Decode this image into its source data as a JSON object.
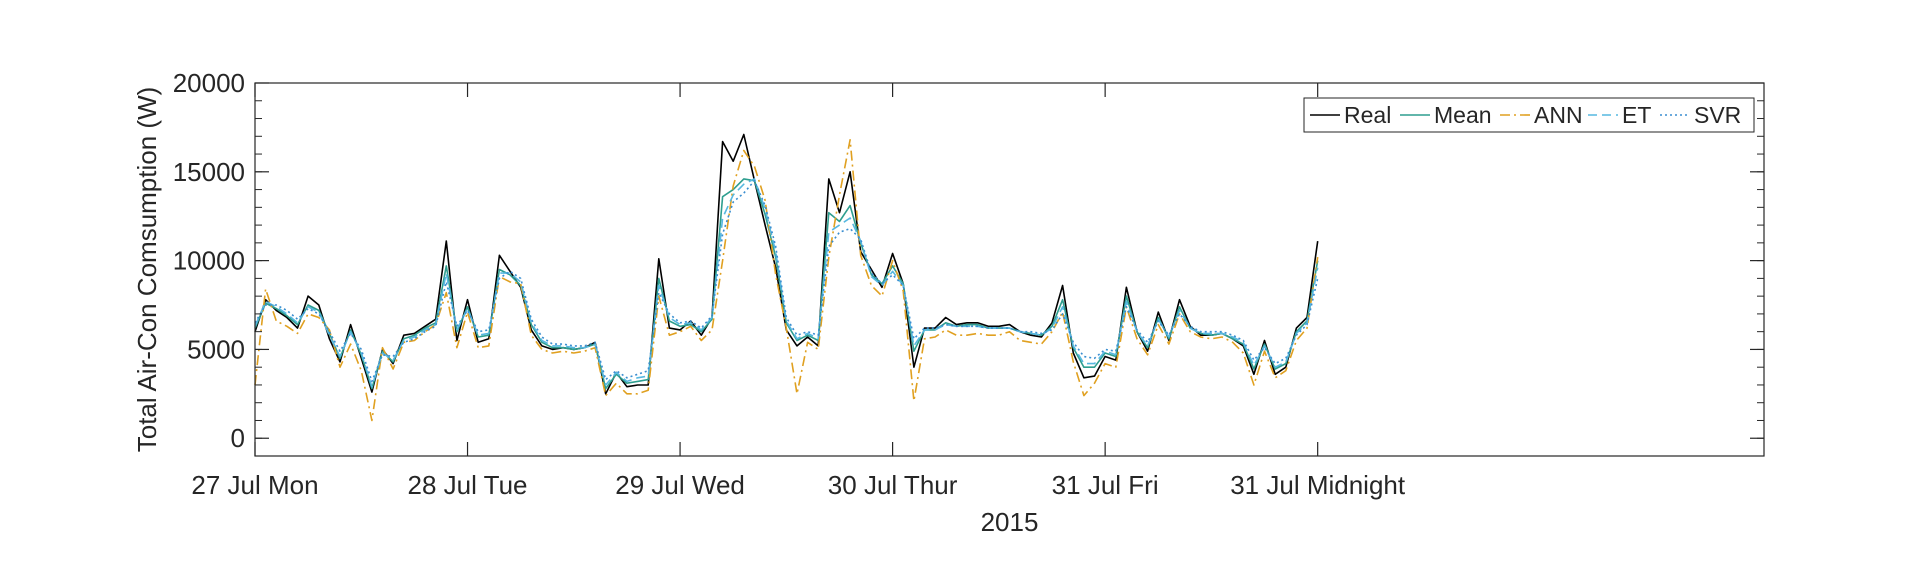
{
  "chart_data": {
    "type": "line",
    "title": "",
    "xlabel": "2015",
    "ylabel": "Total Air-Con Comsumption (W)",
    "ylim": [
      -1000,
      20000
    ],
    "yticks": [
      0,
      5000,
      10000,
      15000,
      20000
    ],
    "yticklabels": [
      "0",
      "5000",
      "10000",
      "15000",
      "20000"
    ],
    "xlim": [
      0,
      7.1
    ],
    "xticks": [
      0,
      1,
      2,
      3,
      4,
      5
    ],
    "xticklabels": [
      "27 Jul Mon",
      "28 Jul Tue",
      "29 Jul Wed",
      "30 Jul Thur",
      "31 Jul Fri",
      "31 Jul Midnight"
    ],
    "grid": false,
    "legend": {
      "position": "top-right",
      "orientation": "horizontal"
    },
    "x": [
      0,
      0.05,
      0.1,
      0.15,
      0.2,
      0.25,
      0.3,
      0.35,
      0.4,
      0.45,
      0.5,
      0.55,
      0.6,
      0.65,
      0.7,
      0.75,
      0.8,
      0.85,
      0.9,
      0.95,
      1,
      1.05,
      1.1,
      1.15,
      1.2,
      1.25,
      1.3,
      1.35,
      1.4,
      1.45,
      1.5,
      1.55,
      1.6,
      1.65,
      1.7,
      1.75,
      1.8,
      1.85,
      1.9,
      1.95,
      2,
      2.05,
      2.1,
      2.15,
      2.2,
      2.25,
      2.3,
      2.35,
      2.4,
      2.45,
      2.5,
      2.55,
      2.6,
      2.65,
      2.7,
      2.75,
      2.8,
      2.85,
      2.9,
      2.95,
      3,
      3.05,
      3.1,
      3.15,
      3.2,
      3.25,
      3.3,
      3.35,
      3.4,
      3.45,
      3.5,
      3.55,
      3.6,
      3.65,
      3.7,
      3.75,
      3.8,
      3.85,
      3.9,
      3.95,
      4,
      4.05,
      4.1,
      4.15,
      4.2,
      4.25,
      4.3,
      4.35,
      4.4,
      4.45,
      4.5,
      4.55,
      4.6,
      4.65,
      4.7,
      4.75,
      4.8,
      4.85,
      4.9,
      4.95,
      5
    ],
    "series": [
      {
        "name": "Real",
        "color": "#000000",
        "dash": "solid",
        "values": [
          6000,
          7800,
          7200,
          6800,
          6200,
          8000,
          7500,
          5600,
          4300,
          6400,
          4500,
          2600,
          5000,
          4200,
          5800,
          5900,
          6300,
          6700,
          11100,
          5500,
          7800,
          5400,
          5600,
          10300,
          9400,
          8500,
          6100,
          5200,
          5000,
          5100,
          5000,
          5100,
          5400,
          2500,
          3700,
          2900,
          3000,
          3000,
          10100,
          6200,
          6100,
          6600,
          5800,
          6800,
          16700,
          15600,
          17100,
          14500,
          12000,
          9600,
          6100,
          5200,
          5700,
          5200,
          14600,
          12700,
          15000,
          10500,
          9500,
          8500,
          10400,
          8700,
          4000,
          6200,
          6200,
          6800,
          6400,
          6500,
          6500,
          6300,
          6300,
          6400,
          6000,
          5800,
          5700,
          6500,
          8600,
          4800,
          3400,
          3500,
          4600,
          4400,
          8500,
          6000,
          4900,
          7100,
          5500,
          7800,
          6300,
          5800,
          5800,
          5900,
          5600,
          5200,
          3600,
          5500,
          3600,
          4000,
          6200,
          6800,
          11100
        ]
      },
      {
        "name": "Mean",
        "color": "#2e9e8f",
        "dash": "solid",
        "values": [
          6200,
          7600,
          7300,
          6900,
          6400,
          7500,
          7200,
          5900,
          4500,
          6100,
          4700,
          2800,
          4900,
          4300,
          5600,
          5800,
          6200,
          6500,
          9700,
          6000,
          7400,
          5700,
          5800,
          9500,
          9200,
          8600,
          6400,
          5400,
          5100,
          5100,
          5000,
          5100,
          5300,
          2800,
          3600,
          3100,
          3200,
          3300,
          9000,
          6600,
          6300,
          6400,
          6000,
          6700,
          13600,
          14000,
          14600,
          14500,
          12600,
          10200,
          6500,
          5500,
          5800,
          5500,
          12700,
          12200,
          13100,
          11000,
          9200,
          8700,
          9700,
          8700,
          4900,
          6100,
          6100,
          6500,
          6300,
          6400,
          6400,
          6200,
          6200,
          6200,
          6000,
          5900,
          5800,
          6300,
          7800,
          5100,
          4000,
          4000,
          4800,
          4600,
          8000,
          6000,
          5100,
          6800,
          5600,
          7400,
          6200,
          5900,
          5800,
          5900,
          5600,
          5300,
          3900,
          5300,
          3900,
          4200,
          6000,
          6600,
          10000
        ]
      },
      {
        "name": "ANN",
        "color": "#e0a020",
        "dash": "dashdot",
        "values": [
          3000,
          8400,
          6600,
          6300,
          5900,
          7000,
          6800,
          6100,
          4000,
          5300,
          3800,
          1000,
          5100,
          3900,
          5400,
          5500,
          6000,
          6400,
          8200,
          5100,
          7100,
          5100,
          5200,
          9100,
          8800,
          8700,
          5800,
          5000,
          4800,
          4900,
          4800,
          4900,
          5100,
          2400,
          3100,
          2500,
          2500,
          2700,
          8000,
          5800,
          6000,
          6300,
          5500,
          6100,
          10000,
          14200,
          16200,
          15300,
          13400,
          9200,
          6200,
          2500,
          5400,
          5000,
          10200,
          13700,
          16800,
          10300,
          8600,
          8000,
          10000,
          8300,
          2100,
          5600,
          5700,
          6100,
          5800,
          5800,
          5900,
          5800,
          5800,
          6000,
          5500,
          5400,
          5300,
          6000,
          7100,
          4300,
          2400,
          3100,
          4200,
          4000,
          7400,
          5600,
          4700,
          6400,
          5300,
          7000,
          6000,
          5700,
          5600,
          5700,
          5400,
          4800,
          3000,
          4900,
          3400,
          3800,
          5500,
          6200,
          10200
        ]
      },
      {
        "name": "ET",
        "color": "#57b8e0",
        "dash": "dash",
        "values": [
          6300,
          7700,
          7400,
          7000,
          6500,
          7400,
          7100,
          5800,
          4600,
          6000,
          4800,
          2900,
          4800,
          4400,
          5500,
          5700,
          6100,
          6400,
          9300,
          6100,
          7300,
          5800,
          5900,
          9300,
          9300,
          8800,
          6500,
          5500,
          5200,
          5200,
          5100,
          5100,
          5300,
          3000,
          3700,
          3200,
          3400,
          3500,
          8600,
          6800,
          6400,
          6500,
          6100,
          6800,
          12400,
          13700,
          14300,
          14600,
          12900,
          10500,
          6600,
          5600,
          5900,
          5600,
          11600,
          12000,
          12400,
          11100,
          9100,
          8600,
          9400,
          8600,
          5200,
          6100,
          6100,
          6400,
          6300,
          6300,
          6300,
          6200,
          6200,
          6200,
          6000,
          5900,
          5800,
          6200,
          7400,
          5200,
          4200,
          4200,
          4900,
          4700,
          7700,
          6000,
          5200,
          6700,
          5700,
          7200,
          6200,
          5900,
          5900,
          5900,
          5700,
          5400,
          4100,
          5200,
          4000,
          4300,
          5900,
          6500,
          9600
        ]
      },
      {
        "name": "SVR",
        "color": "#3a8ed0",
        "dash": "dot",
        "values": [
          6500,
          7500,
          7500,
          7200,
          6700,
          7300,
          7000,
          6000,
          4900,
          5900,
          5000,
          3200,
          4700,
          4600,
          5400,
          5600,
          6000,
          6300,
          8800,
          6300,
          7200,
          6000,
          6100,
          9000,
          9400,
          9000,
          6700,
          5700,
          5300,
          5300,
          5200,
          5200,
          5400,
          3300,
          3800,
          3400,
          3600,
          3800,
          8200,
          7000,
          6500,
          6600,
          6200,
          6900,
          11500,
          13300,
          13800,
          14500,
          13100,
          10800,
          6800,
          5800,
          6000,
          5800,
          10800,
          11600,
          11800,
          11200,
          9300,
          8700,
          9200,
          8600,
          5600,
          6200,
          6200,
          6400,
          6300,
          6300,
          6300,
          6200,
          6200,
          6200,
          6000,
          6000,
          5900,
          6100,
          7000,
          5400,
          4600,
          4500,
          5000,
          4900,
          7400,
          6100,
          5400,
          6600,
          5800,
          7000,
          6300,
          6000,
          6000,
          6000,
          5800,
          5500,
          4400,
          5100,
          4200,
          4500,
          5800,
          6400,
          9000
        ]
      }
    ]
  }
}
